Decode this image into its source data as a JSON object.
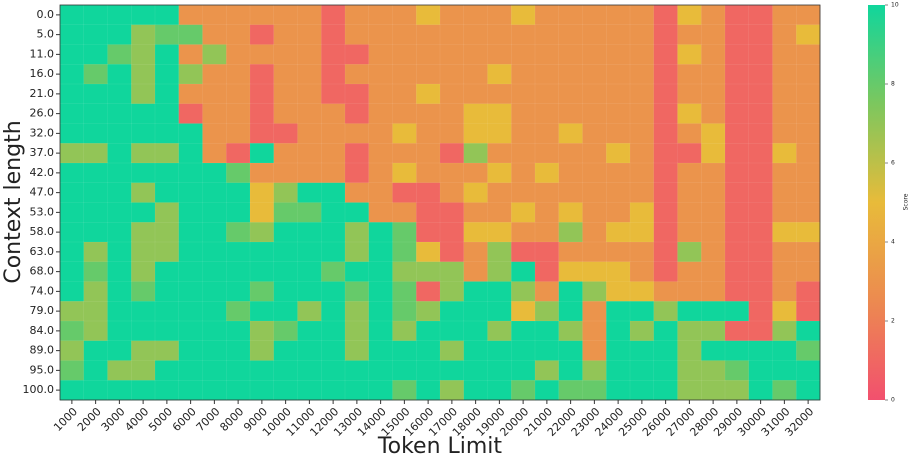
{
  "chart_data": {
    "type": "heatmap",
    "xlabel": "Token Limit",
    "ylabel": "Context length",
    "colorbar_label": "Score",
    "categories": [
      "1000",
      "2000",
      "3000",
      "4000",
      "5000",
      "6000",
      "7000",
      "8000",
      "9000",
      "10000",
      "11000",
      "12000",
      "13000",
      "14000",
      "15000",
      "16000",
      "17000",
      "18000",
      "19000",
      "20000",
      "21000",
      "22000",
      "23000",
      "24000",
      "25000",
      "26000",
      "27000",
      "28000",
      "29000",
      "30000",
      "31000",
      "32000"
    ],
    "rows": [
      "0.0",
      "5.0",
      "11.0",
      "16.0",
      "21.0",
      "26.0",
      "32.0",
      "37.0",
      "42.0",
      "47.0",
      "53.0",
      "58.0",
      "63.0",
      "68.0",
      "74.0",
      "79.0",
      "84.0",
      "89.0",
      "95.0",
      "100.0"
    ],
    "values": [
      [
        10,
        10,
        10,
        10,
        10,
        3,
        3,
        3,
        3,
        3,
        3,
        1,
        3,
        3,
        3,
        5,
        3,
        3,
        3,
        5,
        3,
        3,
        3,
        3,
        3,
        1,
        5,
        3,
        1,
        1,
        3,
        3
      ],
      [
        10,
        10,
        10,
        7,
        8,
        8,
        3,
        3,
        1,
        3,
        3,
        1,
        3,
        3,
        3,
        3,
        3,
        3,
        3,
        3,
        3,
        3,
        3,
        3,
        3,
        1,
        3,
        3,
        1,
        1,
        3,
        5
      ],
      [
        10,
        10,
        8,
        7,
        10,
        3,
        7,
        3,
        3,
        3,
        3,
        1,
        1,
        3,
        3,
        3,
        3,
        3,
        3,
        3,
        3,
        3,
        3,
        3,
        3,
        1,
        5,
        3,
        1,
        1,
        3,
        3
      ],
      [
        10,
        8,
        10,
        7,
        10,
        7,
        3,
        3,
        1,
        3,
        3,
        1,
        3,
        3,
        3,
        3,
        3,
        3,
        5,
        3,
        3,
        3,
        3,
        3,
        3,
        1,
        3,
        3,
        1,
        1,
        3,
        3
      ],
      [
        10,
        10,
        10,
        7,
        10,
        3,
        3,
        3,
        1,
        3,
        3,
        1,
        1,
        3,
        3,
        5,
        3,
        3,
        3,
        3,
        3,
        3,
        3,
        3,
        3,
        1,
        3,
        3,
        1,
        1,
        3,
        3
      ],
      [
        10,
        10,
        10,
        10,
        10,
        1,
        3,
        3,
        1,
        3,
        3,
        3,
        1,
        3,
        3,
        3,
        3,
        5,
        5,
        3,
        3,
        3,
        3,
        3,
        3,
        1,
        5,
        3,
        1,
        1,
        3,
        3
      ],
      [
        10,
        10,
        10,
        10,
        10,
        10,
        3,
        3,
        1,
        1,
        3,
        3,
        3,
        3,
        5,
        3,
        3,
        5,
        5,
        3,
        3,
        5,
        3,
        3,
        3,
        1,
        3,
        5,
        1,
        1,
        3,
        3
      ],
      [
        7,
        7,
        10,
        7,
        7,
        10,
        3,
        1,
        10,
        3,
        3,
        3,
        1,
        3,
        3,
        3,
        1,
        7,
        3,
        3,
        3,
        3,
        3,
        5,
        3,
        1,
        1,
        5,
        1,
        1,
        5,
        3
      ],
      [
        10,
        10,
        10,
        10,
        10,
        10,
        10,
        8,
        3,
        3,
        3,
        3,
        1,
        3,
        5,
        3,
        3,
        3,
        5,
        3,
        5,
        3,
        3,
        3,
        3,
        1,
        3,
        3,
        1,
        1,
        3,
        3
      ],
      [
        10,
        10,
        10,
        7,
        10,
        10,
        10,
        10,
        5,
        7,
        10,
        10,
        3,
        3,
        1,
        1,
        3,
        5,
        3,
        3,
        3,
        3,
        3,
        3,
        3,
        1,
        3,
        3,
        1,
        1,
        3,
        3
      ],
      [
        10,
        10,
        10,
        10,
        7,
        10,
        10,
        10,
        5,
        8,
        8,
        10,
        10,
        3,
        3,
        1,
        1,
        3,
        3,
        5,
        3,
        5,
        3,
        3,
        5,
        1,
        3,
        3,
        1,
        1,
        3,
        3
      ],
      [
        10,
        10,
        10,
        7,
        7,
        10,
        10,
        8,
        7,
        10,
        10,
        10,
        7,
        10,
        8,
        1,
        1,
        5,
        5,
        3,
        3,
        7,
        3,
        5,
        5,
        1,
        3,
        3,
        1,
        1,
        5,
        5
      ],
      [
        10,
        7,
        10,
        7,
        7,
        10,
        10,
        10,
        10,
        10,
        10,
        10,
        7,
        10,
        8,
        5,
        1,
        3,
        7,
        1,
        1,
        3,
        3,
        3,
        3,
        1,
        7,
        3,
        1,
        1,
        3,
        3
      ],
      [
        10,
        8,
        10,
        7,
        10,
        10,
        10,
        10,
        10,
        10,
        10,
        8,
        10,
        10,
        7,
        7,
        7,
        3,
        7,
        10,
        1,
        5,
        5,
        5,
        3,
        1,
        3,
        3,
        1,
        1,
        3,
        3
      ],
      [
        10,
        7,
        10,
        8,
        10,
        10,
        10,
        10,
        8,
        10,
        10,
        10,
        8,
        10,
        8,
        1,
        7,
        10,
        10,
        7,
        3,
        10,
        7,
        5,
        5,
        3,
        3,
        3,
        1,
        1,
        3,
        1
      ],
      [
        7,
        7,
        10,
        10,
        10,
        10,
        10,
        8,
        10,
        10,
        7,
        10,
        7,
        10,
        8,
        7,
        10,
        10,
        10,
        5,
        7,
        10,
        3,
        10,
        10,
        7,
        10,
        10,
        10,
        1,
        5,
        1
      ],
      [
        8,
        7,
        10,
        10,
        10,
        10,
        10,
        10,
        7,
        8,
        10,
        10,
        7,
        10,
        7,
        10,
        10,
        10,
        7,
        10,
        10,
        7,
        3,
        10,
        7,
        10,
        7,
        7,
        1,
        1,
        7,
        10
      ],
      [
        7,
        10,
        10,
        7,
        7,
        10,
        10,
        10,
        7,
        10,
        10,
        10,
        7,
        10,
        10,
        10,
        7,
        10,
        10,
        10,
        10,
        10,
        3,
        10,
        10,
        10,
        7,
        10,
        10,
        10,
        10,
        8
      ],
      [
        8,
        10,
        7,
        7,
        10,
        10,
        10,
        10,
        10,
        10,
        10,
        10,
        10,
        10,
        10,
        10,
        10,
        10,
        10,
        10,
        7,
        10,
        7,
        10,
        10,
        10,
        7,
        7,
        8,
        10,
        10,
        10
      ],
      [
        10,
        10,
        10,
        10,
        10,
        10,
        10,
        10,
        10,
        10,
        10,
        10,
        10,
        10,
        8,
        10,
        7,
        10,
        10,
        8,
        10,
        8,
        8,
        10,
        10,
        10,
        7,
        7,
        7,
        10,
        8,
        10
      ]
    ],
    "zlim": [
      0,
      10
    ],
    "colorbar_ticks": [
      0,
      2,
      4,
      6,
      8,
      10
    ],
    "colors": [
      "#f2506e",
      "#ec8a50",
      "#e8bb3a",
      "#7cc75e",
      "#10d69c"
    ]
  }
}
